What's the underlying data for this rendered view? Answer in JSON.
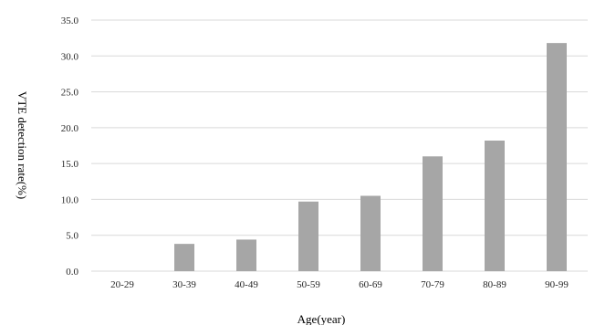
{
  "chart_data": {
    "type": "bar",
    "title": "",
    "xlabel": "Age(year)",
    "ylabel": "VTE detection rate(%)",
    "categories": [
      "20-29",
      "30-39",
      "40-49",
      "50-59",
      "60-69",
      "70-79",
      "80-89",
      "90-99"
    ],
    "values": [
      0.0,
      3.8,
      4.4,
      9.7,
      10.5,
      16.0,
      18.2,
      31.8
    ],
    "ylim": [
      0,
      35
    ],
    "yticks": [
      "0.0",
      "5.0",
      "10.0",
      "15.0",
      "20.0",
      "25.0",
      "30.0",
      "35.0"
    ],
    "grid": true,
    "legend": "none",
    "bar_color": "#a6a6a6",
    "gridline_color": "#d9d9d9"
  }
}
